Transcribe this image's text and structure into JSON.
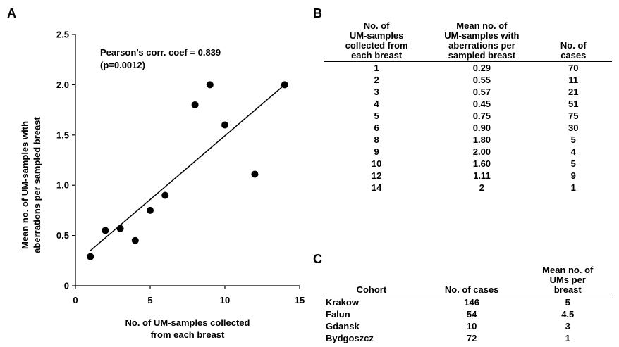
{
  "panel_labels": {
    "a": "A",
    "b": "B",
    "c": "C"
  },
  "chart_data": {
    "type": "scatter",
    "title": "",
    "annotation_line1": "Pearson’s corr. coef = 0.839",
    "annotation_line2": "(p=0.0012)",
    "xlabel_line1": "No. of UM-samples collected",
    "xlabel_line2": "from each breast",
    "ylabel_line1": "Mean no. of UM-samples with",
    "ylabel_line2": "aberrations per sampled breast",
    "xlim": [
      0,
      15
    ],
    "ylim": [
      0,
      2.5
    ],
    "xticks": [
      "0",
      "5",
      "10",
      "15"
    ],
    "yticks": [
      "0",
      "0.5",
      "1.0",
      "1.5",
      "2.0",
      "2.5"
    ],
    "points": [
      {
        "x": 1,
        "y": 0.29
      },
      {
        "x": 2,
        "y": 0.55
      },
      {
        "x": 3,
        "y": 0.57
      },
      {
        "x": 4,
        "y": 0.45
      },
      {
        "x": 5,
        "y": 0.75
      },
      {
        "x": 6,
        "y": 0.9
      },
      {
        "x": 8,
        "y": 1.8
      },
      {
        "x": 9,
        "y": 2.0
      },
      {
        "x": 10,
        "y": 1.6
      },
      {
        "x": 12,
        "y": 1.11
      },
      {
        "x": 14,
        "y": 2.0
      }
    ],
    "trendline": {
      "x_start": 1,
      "y_start": 0.35,
      "x_end": 14,
      "y_end": 2.0
    },
    "marker_color": "#000000"
  },
  "table_b": {
    "headers": [
      [
        "No. of",
        "UM-samples",
        "collected from",
        "each breast"
      ],
      [
        "Mean no. of",
        "UM-samples with",
        "aberrations per",
        "sampled breast"
      ],
      [
        "No. of",
        "cases"
      ]
    ],
    "rows": [
      [
        "1",
        "0.29",
        "70"
      ],
      [
        "2",
        "0.55",
        "11"
      ],
      [
        "3",
        "0.57",
        "21"
      ],
      [
        "4",
        "0.45",
        "51"
      ],
      [
        "5",
        "0.75",
        "75"
      ],
      [
        "6",
        "0.90",
        "30"
      ],
      [
        "8",
        "1.80",
        "5"
      ],
      [
        "9",
        "2.00",
        "4"
      ],
      [
        "10",
        "1.60",
        "5"
      ],
      [
        "12",
        "1.11",
        "9"
      ],
      [
        "14",
        "2",
        "1"
      ]
    ]
  },
  "table_c": {
    "headers": [
      [
        "Cohort"
      ],
      [
        "No. of cases"
      ],
      [
        "Mean no. of",
        "UMs per",
        "breast"
      ]
    ],
    "rows": [
      [
        "Krakow",
        "146",
        "5"
      ],
      [
        "Falun",
        "54",
        "4.5"
      ],
      [
        "Gdansk",
        "10",
        "3"
      ],
      [
        "Bydgoszcz",
        "72",
        "1"
      ]
    ]
  }
}
